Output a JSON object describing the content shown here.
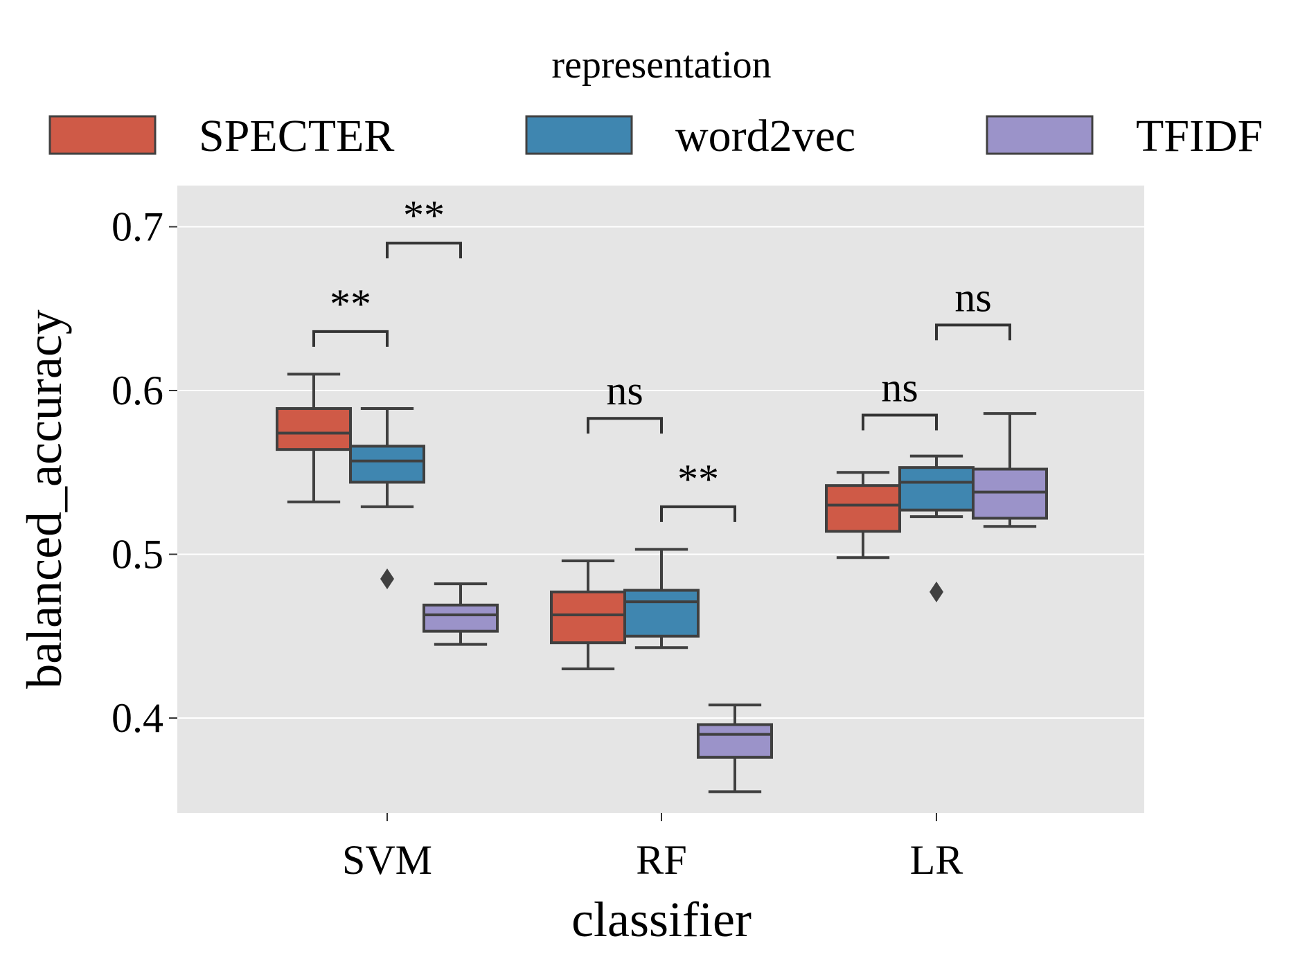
{
  "chart_data": {
    "type": "box",
    "legend": {
      "title": "representation",
      "placement": "top",
      "entries": [
        {
          "name": "SPECTER",
          "color": "#CF5A47"
        },
        {
          "name": "word2vec",
          "color": "#3F86B0"
        },
        {
          "name": "TFIDF",
          "color": "#9B93C9"
        }
      ]
    },
    "xlabel": "classifier",
    "ylabel": "balanced_accuracy",
    "categories": [
      "SVM",
      "RF",
      "LR"
    ],
    "ylim": [
      0.343,
      0.726
    ],
    "yticks": [
      0.4,
      0.5,
      0.6,
      0.7
    ],
    "ytick_labels": [
      "0.4",
      "0.5",
      "0.6",
      "0.7"
    ],
    "grid": true,
    "background": "#E5E5E5",
    "series": [
      {
        "name": "SPECTER",
        "boxes": [
          {
            "category": "SVM",
            "whislo": 0.532,
            "q1": 0.564,
            "med": 0.574,
            "q3": 0.589,
            "whishi": 0.61,
            "fliers": []
          },
          {
            "category": "RF",
            "whislo": 0.43,
            "q1": 0.446,
            "med": 0.463,
            "q3": 0.477,
            "whishi": 0.496,
            "fliers": []
          },
          {
            "category": "LR",
            "whislo": 0.498,
            "q1": 0.514,
            "med": 0.53,
            "q3": 0.542,
            "whishi": 0.55,
            "fliers": []
          }
        ]
      },
      {
        "name": "word2vec",
        "boxes": [
          {
            "category": "SVM",
            "whislo": 0.529,
            "q1": 0.544,
            "med": 0.557,
            "q3": 0.566,
            "whishi": 0.589,
            "fliers": [
              0.485
            ]
          },
          {
            "category": "RF",
            "whislo": 0.443,
            "q1": 0.45,
            "med": 0.471,
            "q3": 0.478,
            "whishi": 0.503,
            "fliers": []
          },
          {
            "category": "LR",
            "whislo": 0.523,
            "q1": 0.527,
            "med": 0.544,
            "q3": 0.553,
            "whishi": 0.56,
            "fliers": [
              0.477
            ]
          }
        ]
      },
      {
        "name": "TFIDF",
        "boxes": [
          {
            "category": "SVM",
            "whislo": 0.445,
            "q1": 0.453,
            "med": 0.463,
            "q3": 0.469,
            "whishi": 0.482,
            "fliers": []
          },
          {
            "category": "RF",
            "whislo": 0.355,
            "q1": 0.376,
            "med": 0.39,
            "q3": 0.396,
            "whishi": 0.408,
            "fliers": []
          },
          {
            "category": "LR",
            "whislo": 0.517,
            "q1": 0.522,
            "med": 0.538,
            "q3": 0.552,
            "whishi": 0.586,
            "fliers": []
          }
        ]
      }
    ],
    "annotations": [
      {
        "category": "SVM",
        "from": "SPECTER",
        "to": "word2vec",
        "label": "**",
        "y": 0.636
      },
      {
        "category": "SVM",
        "from": "word2vec",
        "to": "TFIDF",
        "label": "**",
        "y": 0.69
      },
      {
        "category": "RF",
        "from": "SPECTER",
        "to": "word2vec",
        "label": "ns",
        "y": 0.583
      },
      {
        "category": "RF",
        "from": "word2vec",
        "to": "TFIDF",
        "label": "**",
        "y": 0.529
      },
      {
        "category": "LR",
        "from": "SPECTER",
        "to": "word2vec",
        "label": "ns",
        "y": 0.585
      },
      {
        "category": "LR",
        "from": "word2vec",
        "to": "TFIDF",
        "label": "ns",
        "y": 0.64
      }
    ]
  }
}
